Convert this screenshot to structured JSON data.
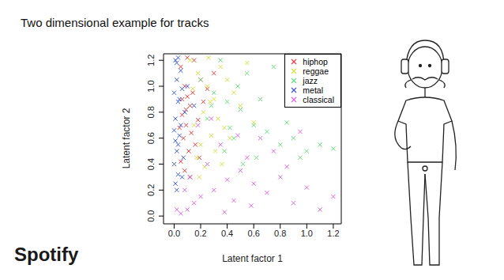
{
  "chart_data": {
    "type": "scatter",
    "title": "Two dimensional example for tracks",
    "x_label": "Latent factor 1",
    "y_label": "Latent factor 2",
    "xlim": [
      -0.08,
      1.26
    ],
    "ylim": [
      -0.06,
      1.25
    ],
    "xticks": [
      {
        "value": 0,
        "label": "0.0"
      },
      0.2,
      0.4,
      0.6,
      0.8,
      {
        "value": 1,
        "label": "1.0"
      },
      1.2
    ],
    "yticks": [
      {
        "value": 0,
        "label": "0.0"
      },
      0.2,
      0.4,
      0.6,
      0.8,
      {
        "value": 1,
        "label": "1.0"
      },
      1.2
    ],
    "legend": "top right",
    "marker": "x",
    "series": [
      {
        "name": "hiphop",
        "color": "#f03c3c",
        "x": [
          0.05,
          0.08,
          0.1,
          0.12,
          0.06,
          0.15,
          0.09,
          0.2,
          0.07,
          0.11,
          0.14,
          0.18,
          0.05,
          0.22,
          0.1,
          0.13,
          0.08,
          0.25,
          0.16,
          0.06,
          0.3,
          0.12,
          0.09,
          0.19,
          0.04
        ],
        "values": [
          1.15,
          1.0,
          0.92,
          0.85,
          0.78,
          1.2,
          0.7,
          1.05,
          0.6,
          0.5,
          0.95,
          0.74,
          0.42,
          0.88,
          1.22,
          0.64,
          0.35,
          0.98,
          0.55,
          0.9,
          1.1,
          0.3,
          0.82,
          0.45,
          0.68
        ]
      },
      {
        "name": "reggae",
        "color": "#d4e040",
        "x": [
          0.12,
          0.18,
          0.25,
          0.3,
          0.22,
          0.35,
          0.15,
          0.28,
          0.4,
          0.2,
          0.33,
          0.45,
          0.17,
          0.26,
          0.38,
          0.5,
          0.23,
          0.14,
          0.31,
          0.42,
          0.55,
          0.27,
          0.19,
          0.36,
          0.6
        ],
        "values": [
          1.2,
          1.1,
          1.0,
          0.9,
          0.8,
          1.15,
          0.7,
          0.62,
          1.05,
          0.55,
          0.75,
          0.95,
          0.45,
          1.22,
          0.68,
          0.85,
          0.38,
          0.98,
          0.5,
          0.6,
          1.18,
          0.88,
          0.3,
          0.4,
          0.72
        ]
      },
      {
        "name": "jazz",
        "color": "#66e07a",
        "x": [
          0.2,
          0.3,
          0.4,
          0.5,
          0.6,
          0.7,
          0.35,
          0.45,
          0.55,
          0.25,
          0.65,
          0.8,
          0.75,
          0.9,
          1.0,
          0.38,
          0.52,
          0.28,
          0.62,
          0.48,
          1.1,
          0.85,
          0.95,
          1.2,
          0.42
        ],
        "values": [
          1.05,
          0.95,
          0.88,
          0.82,
          0.7,
          0.65,
          1.2,
          0.6,
          1.1,
          0.75,
          0.9,
          0.55,
          1.15,
          0.6,
          0.5,
          0.5,
          0.4,
          0.85,
          0.45,
          1.0,
          0.55,
          0.72,
          0.45,
          0.52,
          0.68
        ]
      },
      {
        "name": "metal",
        "color": "#3b5bdb",
        "x": [
          0.01,
          0.02,
          0.0,
          0.03,
          0.05,
          0.01,
          0.04,
          0.02,
          0.06,
          0.0,
          0.03,
          0.08,
          0.01,
          0.02,
          0.05,
          0.03,
          0.07,
          0.0,
          0.04,
          0.02,
          0.1,
          0.01,
          0.06,
          0.03,
          0.15
        ],
        "values": [
          1.2,
          1.05,
          0.95,
          0.88,
          1.12,
          0.75,
          0.62,
          0.5,
          0.98,
          0.4,
          0.32,
          0.8,
          0.25,
          1.18,
          0.7,
          0.55,
          0.45,
          0.66,
          0.9,
          0.2,
          1.0,
          0.58,
          0.3,
          1.22,
          0.85
        ]
      },
      {
        "name": "classical",
        "color": "#e066e6",
        "x": [
          0.05,
          0.1,
          0.15,
          0.2,
          0.3,
          0.4,
          0.5,
          0.6,
          0.7,
          0.8,
          0.9,
          1.0,
          1.1,
          0.25,
          0.35,
          0.45,
          0.55,
          0.65,
          0.75,
          0.85,
          0.12,
          0.08,
          0.95,
          0.02,
          0.18,
          0.38,
          0.58,
          1.2,
          0.28,
          0.48
        ],
        "values": [
          0.02,
          0.05,
          0.1,
          0.15,
          0.2,
          0.28,
          0.35,
          0.25,
          0.18,
          0.3,
          0.1,
          0.22,
          0.05,
          0.4,
          0.55,
          0.12,
          0.45,
          0.6,
          0.5,
          0.38,
          0.3,
          0.2,
          0.65,
          0.05,
          0.7,
          0.03,
          0.08,
          0.15,
          0.75,
          0.62
        ]
      }
    ]
  },
  "logo": "Spotify"
}
